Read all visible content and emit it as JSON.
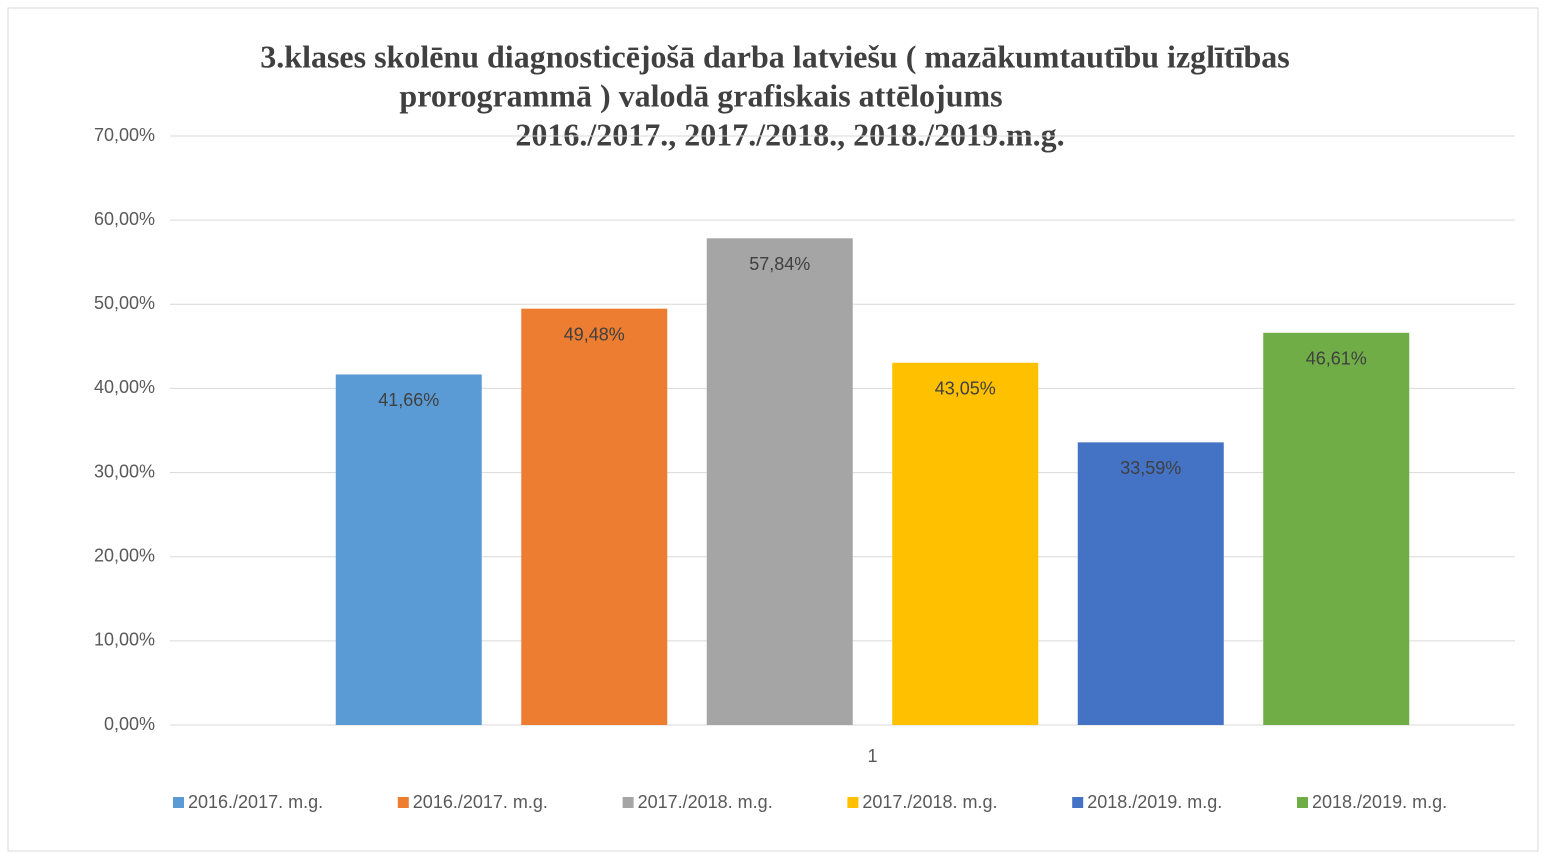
{
  "chart_data": {
    "type": "bar",
    "title": [
      "3.klases skolēnu diagnosticējošā darba latviešu ( mazākumtautību izglītības",
      "prorogrammā ) valodā grafiskais attēlojums",
      "2016./2017., 2017./2018., 2018./2019.m.g."
    ],
    "categories": [
      "1"
    ],
    "series": [
      {
        "name": "2016./2017. m.g.",
        "color": "#5b9bd5",
        "values": [
          41.66
        ],
        "value_labels": [
          "41,66%"
        ]
      },
      {
        "name": "2016./2017. m.g.",
        "color": "#ed7d31",
        "values": [
          49.48
        ],
        "value_labels": [
          "49,48%"
        ]
      },
      {
        "name": "2017./2018. m.g.",
        "color": "#a5a5a5",
        "values": [
          57.84
        ],
        "value_labels": [
          "57,84%"
        ]
      },
      {
        "name": "2017./2018. m.g.",
        "color": "#ffc000",
        "values": [
          43.05
        ],
        "value_labels": [
          "43,05%"
        ]
      },
      {
        "name": "2018./2019. m.g.",
        "color": "#4472c4",
        "values": [
          33.59
        ],
        "value_labels": [
          "33,59%"
        ]
      },
      {
        "name": "2018./2019. m.g.",
        "color": "#70ad47",
        "values": [
          46.61
        ],
        "value_labels": [
          "46,61%"
        ]
      }
    ],
    "ylim": [
      0,
      70
    ],
    "yticks": [
      {
        "value": 0,
        "label": "0,00%"
      },
      {
        "value": 10,
        "label": "10,00%"
      },
      {
        "value": 20,
        "label": "20,00%"
      },
      {
        "value": 30,
        "label": "30,00%"
      },
      {
        "value": 40,
        "label": "40,00%"
      },
      {
        "value": 50,
        "label": "50,00%"
      },
      {
        "value": 60,
        "label": "60,00%"
      },
      {
        "value": 70,
        "label": "70,00%"
      }
    ],
    "grid": true,
    "legend": "bottom"
  }
}
